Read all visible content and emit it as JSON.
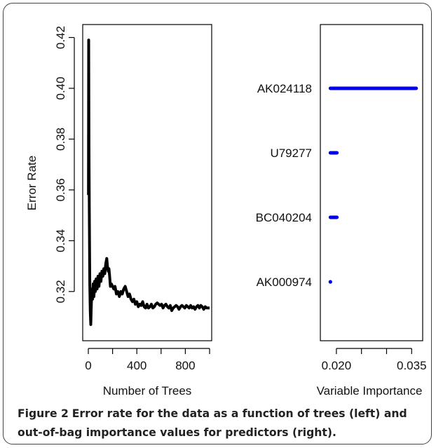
{
  "chart_data": [
    {
      "type": "line",
      "xlabel": "Number of Trees",
      "ylabel": "Error Rate",
      "xlim": [
        0,
        1000
      ],
      "ylim": [
        0.302,
        0.424
      ],
      "xticks": [
        0,
        400,
        800
      ],
      "xticks_minor": [
        200,
        600,
        1000
      ],
      "yticks": [
        0.32,
        0.34,
        0.36,
        0.38,
        0.4,
        0.42
      ],
      "grid": false,
      "x": [
        1,
        3,
        5,
        8,
        12,
        16,
        20,
        25,
        30,
        35,
        40,
        46,
        52,
        58,
        65,
        72,
        80,
        88,
        96,
        104,
        112,
        120,
        128,
        136,
        144,
        152,
        158,
        164,
        170,
        176,
        182,
        190,
        200,
        210,
        220,
        232,
        244,
        256,
        268,
        280,
        292,
        304,
        316,
        328,
        340,
        352,
        364,
        376,
        388,
        400,
        412,
        424,
        436,
        448,
        460,
        472,
        484,
        496,
        508,
        520,
        532,
        544,
        556,
        568,
        580,
        592,
        604,
        616,
        628,
        640,
        652,
        664,
        676,
        688,
        700,
        712,
        724,
        736,
        748,
        760,
        772,
        784,
        796,
        808,
        820,
        832,
        844,
        856,
        868,
        880,
        892,
        904,
        916,
        928,
        940,
        952,
        964,
        976,
        988,
        1000
      ],
      "values": [
        0.358,
        0.419,
        0.378,
        0.352,
        0.323,
        0.312,
        0.307,
        0.315,
        0.321,
        0.317,
        0.323,
        0.318,
        0.324,
        0.32,
        0.325,
        0.321,
        0.326,
        0.322,
        0.327,
        0.324,
        0.328,
        0.326,
        0.329,
        0.327,
        0.331,
        0.333,
        0.33,
        0.328,
        0.329,
        0.326,
        0.322,
        0.323,
        0.322,
        0.321,
        0.322,
        0.319,
        0.32,
        0.318,
        0.32,
        0.319,
        0.321,
        0.322,
        0.32,
        0.318,
        0.319,
        0.317,
        0.316,
        0.317,
        0.315,
        0.316,
        0.314,
        0.315,
        0.3145,
        0.316,
        0.314,
        0.3135,
        0.315,
        0.3135,
        0.314,
        0.315,
        0.3135,
        0.314,
        0.315,
        0.3155,
        0.315,
        0.3145,
        0.315,
        0.3135,
        0.3145,
        0.315,
        0.314,
        0.3135,
        0.3145,
        0.3125,
        0.3135,
        0.314,
        0.3145,
        0.314,
        0.313,
        0.314,
        0.3145,
        0.314,
        0.3135,
        0.3145,
        0.314,
        0.3135,
        0.3145,
        0.3135,
        0.314,
        0.313,
        0.314,
        0.3145,
        0.3135,
        0.3145,
        0.314,
        0.313,
        0.314,
        0.3135,
        0.3135,
        0.3135
      ],
      "color": "#000000"
    },
    {
      "type": "scatter",
      "xlabel": "Variable Importance",
      "xlim": [
        0.0175,
        0.0365
      ],
      "xticks": [
        0.02,
        0.035
      ],
      "xtick_labels": [
        "0.020",
        "0.035"
      ],
      "xticks_minor": [
        0.025,
        0.03
      ],
      "categories": [
        "AK024118",
        "U79277",
        "BC040204",
        "AK000974"
      ],
      "values": [
        0.0359,
        0.0201,
        0.0201,
        0.0188
      ],
      "start": 0.0188,
      "grid": false,
      "color": "#0000ee"
    }
  ],
  "caption": {
    "lead": "Figure 2",
    "body": "Error rate for the data as a function of trees (left) and out-of-bag importance values for predictors (right)."
  }
}
